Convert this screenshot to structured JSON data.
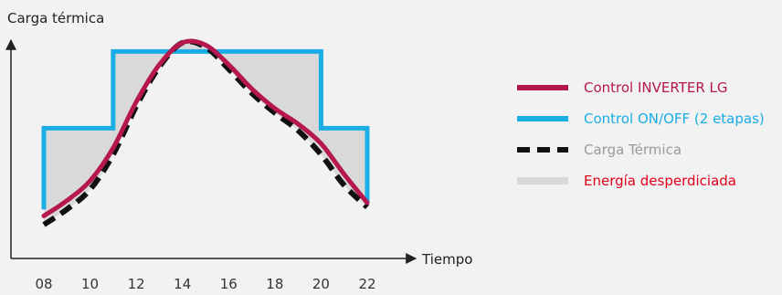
{
  "chart_data": {
    "type": "line",
    "ylabel": "Carga térmica",
    "xlabel": "Tiempo",
    "x_ticks": [
      "08",
      "10",
      "12",
      "14",
      "16",
      "18",
      "20",
      "22"
    ],
    "xlim": [
      8,
      22
    ],
    "ylim": [
      0,
      100
    ],
    "grid": false,
    "legend_position": "right",
    "series": [
      {
        "name": "Control INVERTER LG",
        "color": "#b5174e",
        "style": "solid",
        "x": [
          8,
          9,
          10,
          11,
          12,
          13,
          14,
          15,
          16,
          17,
          18,
          19,
          20,
          21,
          22
        ],
        "y": [
          14,
          21,
          30,
          45,
          66,
          83,
          93,
          92,
          83,
          72,
          63,
          56,
          47,
          33,
          20
        ]
      },
      {
        "name": "Control ON/OFF (2 etapas)",
        "color": "#1aaee5",
        "style": "step",
        "x": [
          8,
          8,
          11,
          11,
          20,
          20,
          22,
          22
        ],
        "y": [
          17,
          54,
          54,
          89,
          89,
          54,
          54,
          20
        ]
      },
      {
        "name": "Carga Térmica",
        "color": "#111111",
        "style": "dashed",
        "x": [
          8,
          9,
          10,
          11,
          12,
          13,
          14,
          15,
          16,
          17,
          18,
          19,
          20,
          21,
          22
        ],
        "y": [
          10,
          17,
          26,
          42,
          64,
          82,
          93,
          91,
          81,
          70,
          61,
          53,
          42,
          28,
          18
        ]
      }
    ],
    "wasted_energy": {
      "name": "Energía desperdiciada",
      "color": "#d9d9d9"
    },
    "legend": [
      {
        "label": "Control INVERTER LG",
        "color": "#b5174e",
        "text_color": "#b5174e",
        "style": "solid"
      },
      {
        "label": "Control ON/OFF (2 etapas)",
        "color": "#1aaee5",
        "text_color": "#1aaee5",
        "style": "solid"
      },
      {
        "label": "Carga Térmica",
        "color": "#111111",
        "text_color": "#9a9a9a",
        "style": "dashed"
      },
      {
        "label": "Energía desperdiciada",
        "color": "#d9d9d9",
        "text_color": "#e1001a",
        "style": "block"
      }
    ]
  }
}
